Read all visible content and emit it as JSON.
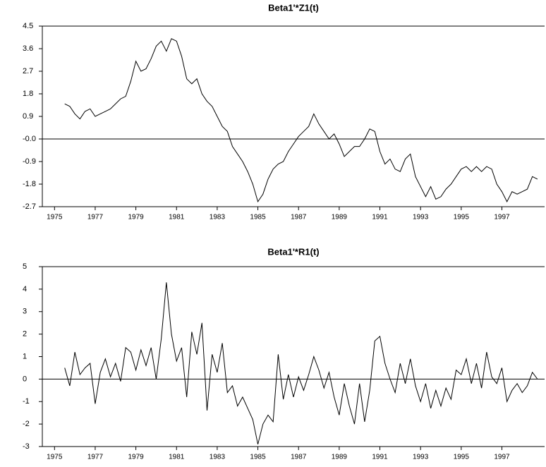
{
  "chart_data": [
    {
      "type": "line",
      "title": "Beta1'*Z1(t)",
      "color": "#000000",
      "reference_line": 0,
      "xlim": [
        1974.4,
        1999.1
      ],
      "xticks": [
        1975,
        1977,
        1979,
        1981,
        1983,
        1985,
        1987,
        1989,
        1991,
        1993,
        1995,
        1997
      ],
      "ylim": [
        -2.7,
        4.5
      ],
      "yticks": [
        4.5,
        3.6,
        2.7,
        1.8,
        0.9,
        {
          "value": 0,
          "label": "-0.0"
        },
        -0.9,
        -1.8,
        -2.7
      ],
      "x": [
        1975.5,
        1975.75,
        1976,
        1976.25,
        1976.5,
        1976.75,
        1977,
        1977.25,
        1977.5,
        1977.75,
        1978,
        1978.25,
        1978.5,
        1978.75,
        1979,
        1979.25,
        1979.5,
        1979.75,
        1980,
        1980.25,
        1980.5,
        1980.75,
        1981,
        1981.25,
        1981.5,
        1981.75,
        1982,
        1982.25,
        1982.5,
        1982.75,
        1983,
        1983.25,
        1983.5,
        1983.75,
        1984,
        1984.25,
        1984.5,
        1984.75,
        1985,
        1985.25,
        1985.5,
        1985.75,
        1986,
        1986.25,
        1986.5,
        1986.75,
        1987,
        1987.25,
        1987.5,
        1987.75,
        1988,
        1988.25,
        1988.5,
        1988.75,
        1989,
        1989.25,
        1989.5,
        1989.75,
        1990,
        1990.25,
        1990.5,
        1990.75,
        1991,
        1991.25,
        1991.5,
        1991.75,
        1992,
        1992.25,
        1992.5,
        1992.75,
        1993,
        1993.25,
        1993.5,
        1993.75,
        1994,
        1994.25,
        1994.5,
        1994.75,
        1995,
        1995.25,
        1995.5,
        1995.75,
        1996,
        1996.25,
        1996.5,
        1996.75,
        1997,
        1997.25,
        1997.5,
        1997.75,
        1998,
        1998.25,
        1998.5,
        1998.75
      ],
      "values": [
        1.4,
        1.3,
        1.0,
        0.8,
        1.1,
        1.2,
        0.9,
        1.0,
        1.1,
        1.2,
        1.4,
        1.6,
        1.7,
        2.3,
        3.1,
        2.7,
        2.8,
        3.2,
        3.7,
        3.9,
        3.5,
        4.0,
        3.9,
        3.3,
        2.4,
        2.2,
        2.4,
        1.8,
        1.5,
        1.3,
        0.9,
        0.5,
        0.3,
        -0.3,
        -0.6,
        -0.9,
        -1.3,
        -1.8,
        -2.5,
        -2.2,
        -1.6,
        -1.2,
        -1.0,
        -0.9,
        -0.5,
        -0.2,
        0.1,
        0.3,
        0.5,
        1.0,
        0.6,
        0.3,
        0.0,
        0.2,
        -0.2,
        -0.7,
        -0.5,
        -0.3,
        -0.3,
        0.0,
        0.4,
        0.3,
        -0.5,
        -1.0,
        -0.8,
        -1.2,
        -1.3,
        -0.8,
        -0.6,
        -1.5,
        -1.9,
        -2.3,
        -1.9,
        -2.4,
        -2.3,
        -2.0,
        -1.8,
        -1.5,
        -1.2,
        -1.1,
        -1.3,
        -1.1,
        -1.3,
        -1.1,
        -1.2,
        -1.8,
        -2.1,
        -2.5,
        -2.1,
        -2.2,
        -2.1,
        -2.0,
        -1.5,
        -1.6
      ]
    },
    {
      "type": "line",
      "title": "Beta1'*R1(t)",
      "color": "#000000",
      "reference_line": 0,
      "xlim": [
        1974.4,
        1999.1
      ],
      "xticks": [
        1975,
        1977,
        1979,
        1981,
        1983,
        1985,
        1987,
        1989,
        1991,
        1993,
        1995,
        1997
      ],
      "ylim": [
        -3,
        5
      ],
      "yticks": [
        5,
        4,
        3,
        2,
        1,
        0,
        -1,
        -2,
        -3
      ],
      "x": [
        1975.5,
        1975.75,
        1976,
        1976.25,
        1976.5,
        1976.75,
        1977,
        1977.25,
        1977.5,
        1977.75,
        1978,
        1978.25,
        1978.5,
        1978.75,
        1979,
        1979.25,
        1979.5,
        1979.75,
        1980,
        1980.25,
        1980.5,
        1980.75,
        1981,
        1981.25,
        1981.5,
        1981.75,
        1982,
        1982.25,
        1982.5,
        1982.75,
        1983,
        1983.25,
        1983.5,
        1983.75,
        1984,
        1984.25,
        1984.5,
        1984.75,
        1985,
        1985.25,
        1985.5,
        1985.75,
        1986,
        1986.25,
        1986.5,
        1986.75,
        1987,
        1987.25,
        1987.5,
        1987.75,
        1988,
        1988.25,
        1988.5,
        1988.75,
        1989,
        1989.25,
        1989.5,
        1989.75,
        1990,
        1990.25,
        1990.5,
        1990.75,
        1991,
        1991.25,
        1991.5,
        1991.75,
        1992,
        1992.25,
        1992.5,
        1992.75,
        1993,
        1993.25,
        1993.5,
        1993.75,
        1994,
        1994.25,
        1994.5,
        1994.75,
        1995,
        1995.25,
        1995.5,
        1995.75,
        1996,
        1996.25,
        1996.5,
        1996.75,
        1997,
        1997.25,
        1997.5,
        1997.75,
        1998,
        1998.25,
        1998.5,
        1998.75
      ],
      "values": [
        0.5,
        -0.3,
        1.2,
        0.2,
        0.5,
        0.7,
        -1.1,
        0.3,
        0.9,
        0.1,
        0.7,
        -0.1,
        1.4,
        1.2,
        0.4,
        1.3,
        0.6,
        1.4,
        0.0,
        1.8,
        4.3,
        2.0,
        0.8,
        1.4,
        -0.8,
        2.1,
        1.1,
        2.5,
        -1.4,
        1.1,
        0.3,
        1.6,
        -0.6,
        -0.3,
        -1.2,
        -0.8,
        -1.3,
        -1.8,
        -2.9,
        -2.0,
        -1.6,
        -1.9,
        1.1,
        -0.9,
        0.2,
        -0.8,
        0.1,
        -0.5,
        0.2,
        1.0,
        0.4,
        -0.4,
        0.3,
        -0.8,
        -1.6,
        -0.2,
        -1.2,
        -2.0,
        -0.2,
        -1.9,
        -0.5,
        1.7,
        1.9,
        0.7,
        0.0,
        -0.6,
        0.7,
        -0.2,
        0.9,
        -0.3,
        -1.0,
        -0.2,
        -1.3,
        -0.5,
        -1.2,
        -0.4,
        -0.9,
        0.4,
        0.2,
        0.9,
        -0.2,
        0.7,
        -0.4,
        1.2,
        0.1,
        -0.2,
        0.5,
        -1.0,
        -0.5,
        -0.2,
        -0.6,
        -0.3,
        0.3,
        0.0
      ]
    }
  ]
}
